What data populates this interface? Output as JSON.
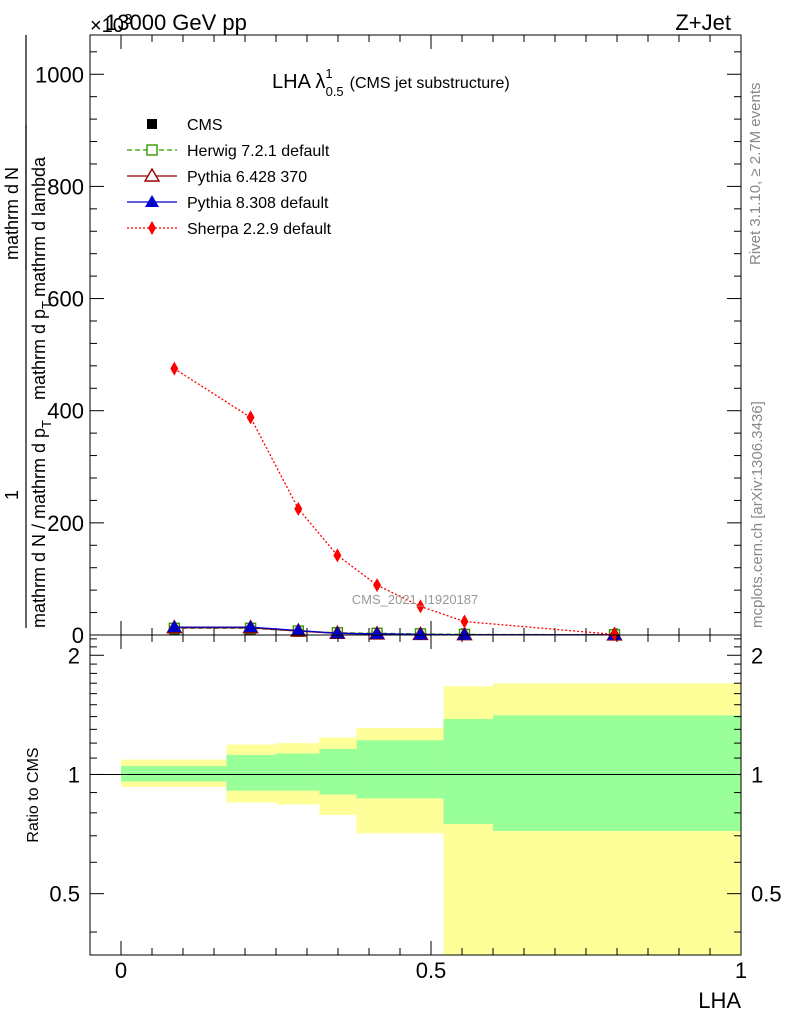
{
  "header": {
    "left": "13000 GeV pp",
    "right": "Z+Jet",
    "exponent": "×10",
    "exponent_power": "3"
  },
  "side_labels": {
    "rivet": "Rivet 3.1.10, ≥ 2.7M events",
    "mcplots": "mcplots.cern.ch [arXiv:1306.3436]"
  },
  "chart_data": [
    {
      "type": "line",
      "title": "LHA λ",
      "title_sup": "1",
      "title_sub": "0.5",
      "subtitle": "(CMS jet substructure)",
      "watermark": "CMS_2021_I1920187",
      "xlabel": "",
      "ylabel": "1 / mathrm d N / mathrm d p_T mathrm d N / mathrm d p_T mathrm d lambda",
      "ylabel_numerator": "mathrm d",
      "ylabel_numerator2": "N",
      "ylabel_denominator": "mathrm d p",
      "ylabel_denominator2": "T",
      "ylabel_denominator3": "mathrm d lambda",
      "ylabel_prefix": "1",
      "ylabel_lower": "mathrm d N / mathrm d p",
      "ylabel_lower_sub": "T",
      "xlim": [
        -0.05,
        1.0
      ],
      "ylim": [
        0,
        1070
      ],
      "yunit_factor": 1000,
      "yticks": [
        0,
        200,
        400,
        600,
        800,
        1000
      ],
      "ytick_labels": [
        "0",
        "200",
        "400",
        "600",
        "800",
        "1000"
      ],
      "grid": false,
      "legend_position": "top-left",
      "x": [
        0.086,
        0.209,
        0.286,
        0.349,
        0.413,
        0.483,
        0.554,
        0.796
      ],
      "series": [
        {
          "name": "CMS",
          "color": "#000000",
          "marker": "square-filled",
          "values": [
            10,
            10,
            6,
            4,
            3,
            2,
            1,
            1
          ]
        },
        {
          "name": "Herwig 7.2.1 default",
          "color": "#339900",
          "marker": "square-open",
          "dash": "dashed",
          "values": [
            12,
            12,
            7,
            4,
            3,
            2,
            1,
            0.5
          ]
        },
        {
          "name": "Pythia 6.428 370",
          "color": "#990000",
          "marker": "triangle-open",
          "dash": "solid",
          "values": [
            13,
            13,
            7,
            3,
            2,
            1,
            0.5,
            0.2
          ]
        },
        {
          "name": "Pythia 8.308 default",
          "color": "#0000cc",
          "marker": "triangle-filled",
          "dash": "solid",
          "values": [
            14,
            14,
            8,
            3,
            2,
            1,
            0.5,
            0.2
          ]
        },
        {
          "name": "Sherpa 2.2.9 default",
          "color": "#ff0000",
          "marker": "diamond-filled",
          "dash": "dotted",
          "values": [
            475,
            388,
            225,
            142,
            89,
            51,
            24,
            1
          ]
        }
      ]
    },
    {
      "type": "area",
      "title": "",
      "xlabel": "LHA",
      "ylabel": "Ratio to CMS",
      "xlim": [
        -0.05,
        1.0
      ],
      "ylim": [
        0.35,
        2.25
      ],
      "yticks": [
        0.5,
        1,
        2
      ],
      "ytick_labels": [
        "0.5",
        "1",
        "2"
      ],
      "xticks": [
        0,
        0.5,
        1
      ],
      "xtick_labels": [
        "0",
        "0.5",
        "1"
      ],
      "reference_line": 1,
      "bins": [
        0.0,
        0.17,
        0.25,
        0.32,
        0.38,
        0.52,
        0.6,
        1.0
      ],
      "band_outer": {
        "color": "#ffff99",
        "low": [
          0.93,
          0.85,
          0.84,
          0.79,
          0.71,
          0.35,
          0.35
        ],
        "high": [
          1.09,
          1.19,
          1.2,
          1.24,
          1.31,
          1.67,
          1.7
        ]
      },
      "band_inner": {
        "color": "#99ff99",
        "low": [
          0.96,
          0.91,
          0.91,
          0.89,
          0.87,
          0.75,
          0.72
        ],
        "high": [
          1.05,
          1.12,
          1.13,
          1.16,
          1.22,
          1.38,
          1.41
        ]
      }
    }
  ]
}
